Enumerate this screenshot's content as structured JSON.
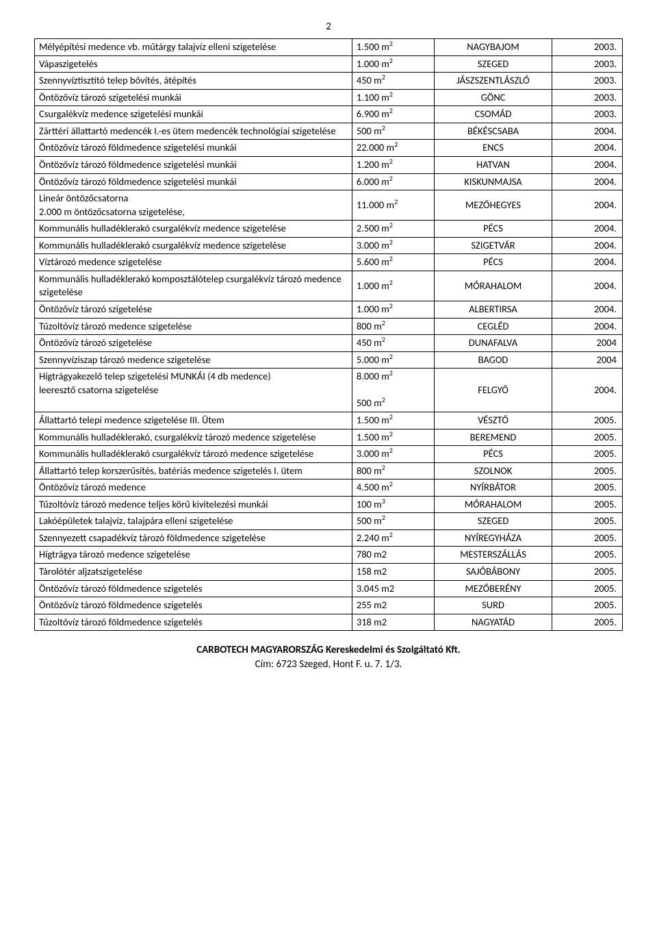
{
  "page_number": "2",
  "footer": {
    "company": "CARBOTECH MAGYARORSZÁG Kereskedelmi és Szolgáltató Kft.",
    "address": "Cím: 6723 Szeged, Hont F. u. 7. 1/3."
  },
  "rows": [
    {
      "desc": "Mélyépítési medence vb. műtárgy talajvíz elleni szigetelése",
      "val": "1.500 m",
      "sup": "2",
      "loc": "NAGYBAJOM",
      "year": "2003."
    },
    {
      "desc": "Vápaszigetelés",
      "val": "1.000 m",
      "sup": "2",
      "loc": "SZEGED",
      "year": "2003."
    },
    {
      "desc": "Szennyvíztisztító telep bővítés, átépítés",
      "val": "450 m",
      "sup": "2",
      "loc": "JÁSZSZENTLÁSZLÓ",
      "year": "2003."
    },
    {
      "desc": "Öntözővíz tározó szigetelési munkái",
      "val": "1.100 m",
      "sup": "2",
      "loc": "GÖNC",
      "year": "2003."
    },
    {
      "desc": "Csurgalékvíz medence  szigetelési munkái",
      "val": "6.900 m",
      "sup": "2",
      "loc": "CSOMÁD",
      "year": "2003."
    },
    {
      "desc": "Zárttéri állattartó medencék I.-es ütem medencék technológiai szigetelése",
      "val": "500 m",
      "sup": "2",
      "loc": "BÉKÉSCSABA",
      "year": "2004."
    },
    {
      "desc": "Öntözővíz tározó földmedence szigetelési munkái",
      "val": "22.000 m",
      "sup": "2",
      "loc": "ENCS",
      "year": "2004."
    },
    {
      "desc": "Öntözővíz tározó földmedence szigetelési munkái",
      "val": "1.200 m",
      "sup": "2",
      "loc": "HATVAN",
      "year": "2004."
    },
    {
      "desc": "Öntözővíz tározó földmedence szigetelési munkái",
      "val": "6.000 m",
      "sup": "2",
      "loc": "KISKUNMAJSA",
      "year": "2004."
    },
    {
      "desc": "Lineár öntözőcsatorna\n2.000 m öntözőcsatorna szigetelése,",
      "val": "11.000 m",
      "sup": "2",
      "loc": "MEZŐHEGYES",
      "year": "2004."
    },
    {
      "desc": "Kommunális hulladéklerakó csurgalékvíz medence szigetelése",
      "val": "2.500 m",
      "sup": "2",
      "loc": "PÉCS",
      "year": "2004."
    },
    {
      "desc": "Kommunális hulladéklerakó csurgalékvíz medence szigetelése",
      "val": "3.000 m",
      "sup": "2",
      "loc": "SZIGETVÁR",
      "year": "2004."
    },
    {
      "desc": "Víztározó medence szigetelése",
      "val": "5.600 m",
      "sup": "2",
      "loc": "PÉCS",
      "year": "2004."
    },
    {
      "desc": "Kommunális hulladéklerakó komposztálótelep csurgalékvíz tározó medence szigetelése",
      "val": "1.000 m",
      "sup": "2",
      "loc": "MÓRAHALOM",
      "year": "2004."
    },
    {
      "desc": "Öntözővíz tározó szigetelése",
      "val": "1.000 m",
      "sup": "2",
      "loc": "ALBERTIRSA",
      "year": "2004."
    },
    {
      "desc": "Tűzoltóvíz tározó medence szigetelése",
      "val": "800 m",
      "sup": "2",
      "loc": "CEGLÉD",
      "year": "2004."
    },
    {
      "desc": "Öntözővíz tározó szigetelése",
      "val": "450 m",
      "sup": "2",
      "loc": "DUNAFALVA",
      "year": "2004"
    },
    {
      "desc": "Szennyvíziszap tározó medence szigetelése",
      "val": "5.000 m",
      "sup": "2",
      "loc": "BAGOD",
      "year": "2004"
    },
    {
      "desc": "Hígtrágyakezelő telep szigetelési MUNKÁI    (4 db medence)\nleeresztő csatorna szigetelése",
      "val_multi": [
        "8.000 m",
        "500 m"
      ],
      "sup_multi": [
        "2",
        "2"
      ],
      "loc": "FELGYŐ",
      "year": "2004."
    },
    {
      "desc": "Állattartó telepi medence szigetelése     III. Ütem",
      "val": "1.500 m",
      "sup": "2",
      "loc": "VÉSZTŐ",
      "year": "2005."
    },
    {
      "desc": "Kommunális hulladéklerakó, csurgalékvíz tározó medence szigetelése",
      "val": "1.500 m",
      "sup": "2",
      "loc": "BEREMEND",
      "year": "2005."
    },
    {
      "desc": "Kommunális hulladéklerakó csurgalékvíz tározó medence szigetelése",
      "val": "3.000 m",
      "sup": "2",
      "loc": "PÉCS",
      "year": "2005."
    },
    {
      "desc": "Állattartó telep korszerűsítés, batériás medence szigetelés I. ütem",
      "val": "800 m",
      "sup": "2",
      "loc": "SZOLNOK",
      "year": "2005."
    },
    {
      "desc": "Öntözővíz tározó medence",
      "val": "4.500 m",
      "sup": "2",
      "loc": "NYÍRBÁTOR",
      "year": "2005."
    },
    {
      "desc": "Tűzoltóvíz tározó medence teljes körű kivitelezési munkái",
      "val": "100 m",
      "sup": "3",
      "loc": "MÓRAHALOM",
      "year": "2005."
    },
    {
      "desc": "Lakóépületek talajvíz, talajpára elleni szigetelése",
      "val": "500 m",
      "sup": "2",
      "loc": "SZEGED",
      "year": "2005."
    },
    {
      "desc": "Szennyezett csapadékvíz tározó földmedence szigetelése",
      "val": "2.240 m",
      "sup": "2",
      "loc": "NYÍREGYHÁZA",
      "year": "2005."
    },
    {
      "desc": "Hígtrágya tározó medence szigetelése",
      "val": "780 m2",
      "sup": "",
      "loc": "MESTERSZÁLLÁS",
      "year": "2005."
    },
    {
      "desc": "Tárolótér aljzatszigetelése",
      "val": "158 m2",
      "sup": "",
      "loc": "SAJÓBÁBONY",
      "year": "2005."
    },
    {
      "desc": "Öntözővíz tározó földmedence szigetelés",
      "val": "3.045 m2",
      "sup": "",
      "loc": "MEZŐBERÉNY",
      "year": "2005."
    },
    {
      "desc": "Öntözővíz tározó földmedence szigetelés",
      "val": "255 m2",
      "sup": "",
      "loc": "SURD",
      "year": "2005."
    },
    {
      "desc": "Tűzoltóvíz tározó földmedence szigetelés",
      "val": "318 m2",
      "sup": "",
      "loc": "NAGYATÁD",
      "year": "2005."
    }
  ]
}
